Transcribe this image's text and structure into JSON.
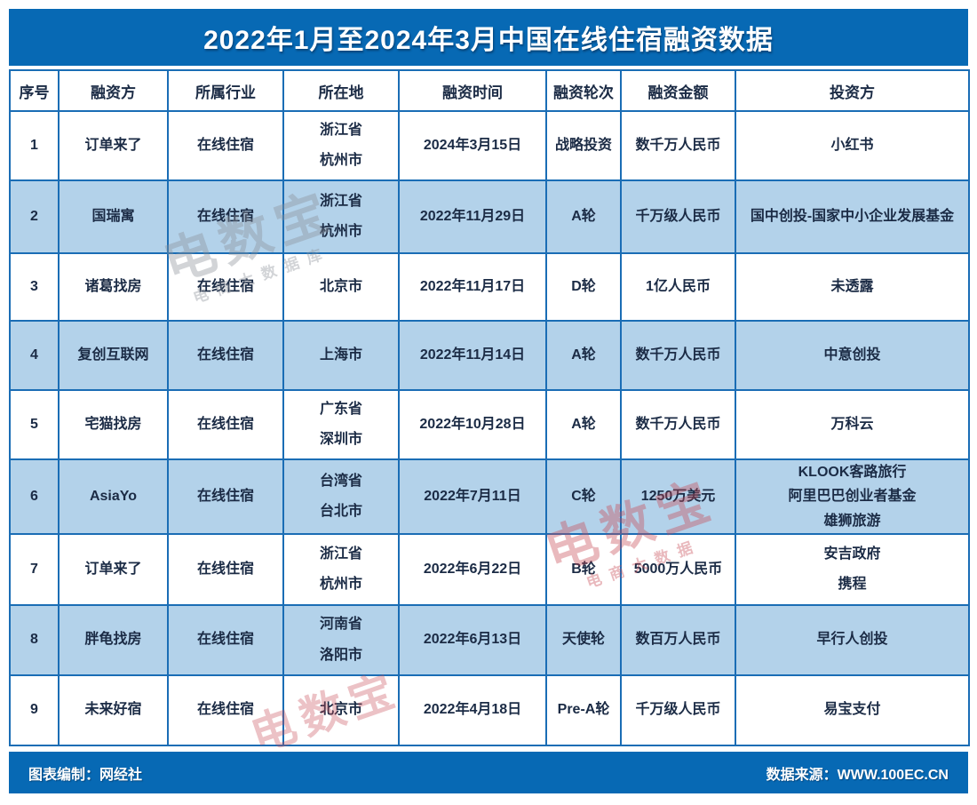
{
  "chart_data": {
    "type": "table",
    "title": "2022年1月至2024年3月中国在线住宿融资数据",
    "columns": [
      "序号",
      "融资方",
      "所属行业",
      "所在地",
      "融资时间",
      "融资轮次",
      "融资金额",
      "投资方"
    ],
    "column_keys": [
      "no",
      "party",
      "industry",
      "location",
      "date",
      "round",
      "amount",
      "investors"
    ],
    "rows": [
      {
        "no": "1",
        "party": "订单来了",
        "industry": "在线住宿",
        "location": [
          "浙江省",
          "杭州市"
        ],
        "date": "2024年3月15日",
        "round": "战略投资",
        "amount": "数千万人民币",
        "investors": [
          "小红书"
        ]
      },
      {
        "no": "2",
        "party": "国瑞寓",
        "industry": "在线住宿",
        "location": [
          "浙江省",
          "杭州市"
        ],
        "date": "2022年11月29日",
        "round": "A轮",
        "amount": "千万级人民币",
        "investors": [
          "国中创投-国家中小企业发展基金"
        ]
      },
      {
        "no": "3",
        "party": "诸葛找房",
        "industry": "在线住宿",
        "location": [
          "北京市"
        ],
        "date": "2022年11月17日",
        "round": "D轮",
        "amount": "1亿人民币",
        "investors": [
          "未透露"
        ]
      },
      {
        "no": "4",
        "party": "复创互联网",
        "industry": "在线住宿",
        "location": [
          "上海市"
        ],
        "date": "2022年11月14日",
        "round": "A轮",
        "amount": "数千万人民币",
        "investors": [
          "中意创投"
        ]
      },
      {
        "no": "5",
        "party": "宅猫找房",
        "industry": "在线住宿",
        "location": [
          "广东省",
          "深圳市"
        ],
        "date": "2022年10月28日",
        "round": "A轮",
        "amount": "数千万人民币",
        "investors": [
          "万科云"
        ]
      },
      {
        "no": "6",
        "party": "AsiaYo",
        "industry": "在线住宿",
        "location": [
          "台湾省",
          "台北市"
        ],
        "date": "2022年7月11日",
        "round": "C轮",
        "amount": "1250万美元",
        "investors": [
          "KLOOK客路旅行",
          "阿里巴巴创业者基金",
          "雄狮旅游"
        ]
      },
      {
        "no": "7",
        "party": "订单来了",
        "industry": "在线住宿",
        "location": [
          "浙江省",
          "杭州市"
        ],
        "date": "2022年6月22日",
        "round": "B轮",
        "amount": "5000万人民币",
        "investors": [
          "安吉政府",
          "携程"
        ]
      },
      {
        "no": "8",
        "party": "胖龟找房",
        "industry": "在线住宿",
        "location": [
          "河南省",
          "洛阳市"
        ],
        "date": "2022年6月13日",
        "round": "天使轮",
        "amount": "数百万人民币",
        "investors": [
          "早行人创投"
        ]
      },
      {
        "no": "9",
        "party": "未来好宿",
        "industry": "在线住宿",
        "location": [
          "北京市"
        ],
        "date": "2022年4月18日",
        "round": "Pre-A轮",
        "amount": "千万级人民币",
        "investors": [
          "易宝支付"
        ]
      }
    ],
    "layout_hints": {
      "striped": true,
      "stripe_rows": "even",
      "grid": true
    }
  },
  "footer": {
    "left": "图表编制：网经社",
    "right": "数据来源：WWW.100EC.CN"
  },
  "watermarks": [
    {
      "text": "电数宝",
      "sub": "电商大数据库"
    },
    {
      "text": "电数宝",
      "sub": "电商大数据"
    },
    {
      "text": "电数宝",
      "sub": ""
    }
  ],
  "colors": {
    "header_blue": "#0769b4",
    "row_alt": "#b3d2ea",
    "border": "#1a6db5",
    "text": "#1b2b45",
    "title_text": "#ffffff",
    "footer_text": "#ffffff",
    "watermark_pink": "#c84a55",
    "watermark_gray": "#8a8f98"
  }
}
